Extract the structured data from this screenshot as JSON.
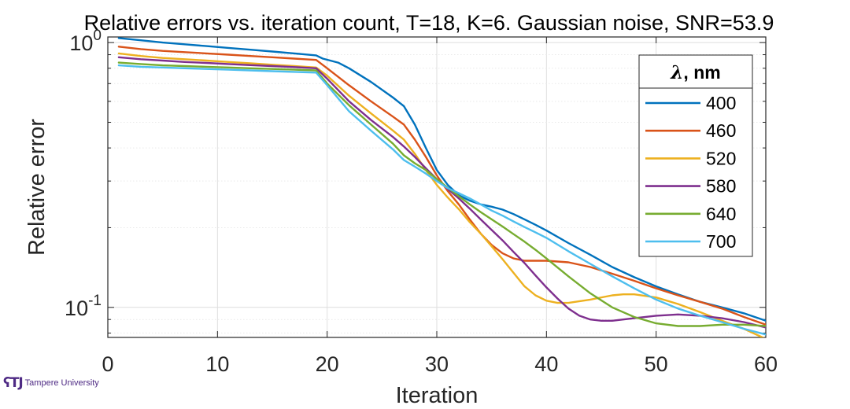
{
  "chart_data": {
    "type": "line",
    "title": "Relative errors vs. iteration count, T=18, K=6. Gaussian noise, SNR=53.9",
    "xlabel": "Iteration",
    "ylabel": "Relative error",
    "xlim": [
      0,
      60
    ],
    "ylim": [
      0.077,
      1.05
    ],
    "yscale": "log",
    "xticks": [
      0,
      10,
      20,
      30,
      40,
      50,
      60
    ],
    "xtick_labels": [
      "0",
      "10",
      "20",
      "30",
      "40",
      "50",
      "60"
    ],
    "yticks": [
      {
        "value": 1,
        "base": "10",
        "exp": "0"
      },
      {
        "value": 0.1,
        "base": "10",
        "exp": "-1"
      }
    ],
    "grid": true,
    "legend": {
      "title_symbol": "λ",
      "title_unit": ", nm",
      "placement": "top-right"
    },
    "series": [
      {
        "name": "400",
        "color": "#0072BD",
        "x": [
          1,
          3,
          5,
          7,
          9,
          11,
          13,
          15,
          17,
          19,
          19.6,
          21,
          22,
          24,
          26,
          27,
          28,
          29,
          30,
          31,
          32,
          33,
          34,
          35,
          36,
          37,
          38,
          39,
          40,
          42,
          44,
          46,
          48,
          50,
          52,
          54,
          56,
          58,
          60
        ],
        "y": [
          1.04,
          1.02,
          1.0,
          0.985,
          0.97,
          0.955,
          0.94,
          0.925,
          0.91,
          0.895,
          0.87,
          0.84,
          0.8,
          0.71,
          0.62,
          0.575,
          0.49,
          0.4,
          0.33,
          0.29,
          0.265,
          0.253,
          0.245,
          0.24,
          0.234,
          0.225,
          0.215,
          0.205,
          0.195,
          0.175,
          0.158,
          0.142,
          0.13,
          0.12,
          0.112,
          0.105,
          0.1,
          0.095,
          0.089
        ]
      },
      {
        "name": "460",
        "color": "#D95319",
        "x": [
          1,
          3,
          5,
          7,
          9,
          11,
          13,
          15,
          17,
          19,
          20,
          22,
          24,
          26,
          27,
          28,
          29,
          30,
          31,
          32,
          33,
          34,
          35,
          36,
          37,
          38,
          40,
          42,
          44,
          46,
          48,
          50,
          52,
          54,
          56,
          58,
          60
        ],
        "y": [
          0.965,
          0.945,
          0.93,
          0.92,
          0.91,
          0.9,
          0.89,
          0.88,
          0.87,
          0.86,
          0.8,
          0.69,
          0.6,
          0.525,
          0.49,
          0.43,
          0.37,
          0.315,
          0.275,
          0.245,
          0.215,
          0.19,
          0.172,
          0.16,
          0.153,
          0.15,
          0.15,
          0.148,
          0.142,
          0.134,
          0.126,
          0.118,
          0.111,
          0.105,
          0.099,
          0.092,
          0.086
        ]
      },
      {
        "name": "520",
        "color": "#EDB120",
        "x": [
          1,
          3,
          5,
          7,
          9,
          11,
          13,
          15,
          17,
          19,
          20,
          22,
          24,
          26,
          27,
          28,
          29,
          30,
          31,
          32,
          33,
          34,
          35,
          36,
          37,
          38,
          39,
          40,
          41,
          42,
          44,
          46,
          47,
          48,
          50,
          52,
          54,
          56,
          58,
          60
        ],
        "y": [
          0.91,
          0.89,
          0.875,
          0.865,
          0.855,
          0.845,
          0.835,
          0.825,
          0.815,
          0.805,
          0.75,
          0.63,
          0.54,
          0.465,
          0.43,
          0.38,
          0.33,
          0.29,
          0.26,
          0.235,
          0.21,
          0.19,
          0.17,
          0.152,
          0.135,
          0.12,
          0.111,
          0.106,
          0.104,
          0.104,
          0.107,
          0.111,
          0.112,
          0.112,
          0.109,
          0.103,
          0.096,
          0.089,
          0.083,
          0.076
        ]
      },
      {
        "name": "580",
        "color": "#7E2F8E",
        "x": [
          1,
          3,
          5,
          7,
          9,
          11,
          13,
          15,
          17,
          19,
          20,
          22,
          24,
          26,
          27,
          28,
          29,
          30,
          31,
          32,
          33,
          34,
          35,
          36,
          37,
          38,
          39,
          40,
          41,
          42,
          43,
          44,
          45,
          46,
          48,
          50,
          52,
          54,
          56,
          58,
          60
        ],
        "y": [
          0.88,
          0.865,
          0.855,
          0.845,
          0.838,
          0.83,
          0.822,
          0.815,
          0.808,
          0.8,
          0.73,
          0.6,
          0.51,
          0.44,
          0.405,
          0.37,
          0.335,
          0.305,
          0.28,
          0.258,
          0.236,
          0.215,
          0.196,
          0.179,
          0.162,
          0.147,
          0.132,
          0.119,
          0.108,
          0.099,
          0.093,
          0.09,
          0.089,
          0.089,
          0.091,
          0.093,
          0.094,
          0.093,
          0.091,
          0.088,
          0.084
        ]
      },
      {
        "name": "640",
        "color": "#77AC30",
        "x": [
          1,
          3,
          5,
          7,
          9,
          11,
          13,
          15,
          17,
          19,
          20,
          22,
          24,
          26,
          27,
          28,
          29,
          30,
          31,
          32,
          33,
          34,
          35,
          36,
          37,
          38,
          39,
          40,
          42,
          44,
          46,
          48,
          50,
          52,
          54,
          56,
          58,
          60
        ],
        "y": [
          0.84,
          0.83,
          0.82,
          0.815,
          0.81,
          0.805,
          0.8,
          0.795,
          0.79,
          0.785,
          0.7,
          0.58,
          0.49,
          0.415,
          0.375,
          0.35,
          0.33,
          0.305,
          0.283,
          0.263,
          0.245,
          0.229,
          0.215,
          0.202,
          0.189,
          0.177,
          0.165,
          0.153,
          0.131,
          0.113,
          0.1,
          0.092,
          0.087,
          0.085,
          0.085,
          0.086,
          0.086,
          0.085
        ]
      },
      {
        "name": "700",
        "color": "#4DBEEE",
        "x": [
          1,
          3,
          5,
          7,
          9,
          11,
          13,
          15,
          17,
          19,
          20,
          22,
          24,
          26,
          27,
          28,
          29,
          30,
          31,
          32,
          33,
          34,
          35,
          36,
          37,
          38,
          39,
          40,
          42,
          44,
          46,
          48,
          50,
          52,
          54,
          56,
          58,
          60
        ],
        "y": [
          0.82,
          0.81,
          0.805,
          0.8,
          0.795,
          0.79,
          0.785,
          0.78,
          0.775,
          0.77,
          0.69,
          0.55,
          0.465,
          0.395,
          0.36,
          0.34,
          0.32,
          0.3,
          0.282,
          0.27,
          0.258,
          0.245,
          0.232,
          0.222,
          0.211,
          0.201,
          0.192,
          0.183,
          0.163,
          0.146,
          0.131,
          0.118,
          0.107,
          0.099,
          0.093,
          0.088,
          0.083,
          0.079
        ]
      }
    ]
  },
  "branding": {
    "logo_mark": "ʕTJ",
    "logo_text": "Tampere University"
  }
}
